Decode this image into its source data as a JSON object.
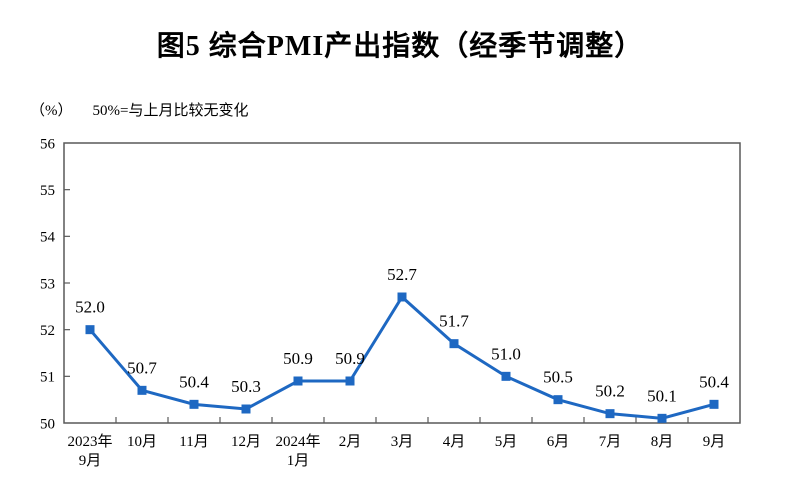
{
  "chart_data": {
    "type": "line",
    "title": "图5 综合PMI产出指数（经季节调整）",
    "unit_label": "（%）",
    "annotation": "50%=与上月比较无变化",
    "categories": [
      "2023年\n9月",
      "10月",
      "11月",
      "12月",
      "2024年\n1月",
      "2月",
      "3月",
      "4月",
      "5月",
      "6月",
      "7月",
      "8月",
      "9月"
    ],
    "series": [
      {
        "name": "综合PMI产出指数（经季节调整）",
        "values": [
          52.0,
          50.7,
          50.4,
          50.3,
          50.9,
          50.9,
          52.7,
          51.7,
          51.0,
          50.5,
          50.2,
          50.1,
          50.4
        ]
      }
    ],
    "data_labels": [
      "52.0",
      "50.7",
      "50.4",
      "50.3",
      "50.9",
      "50.9",
      "52.7",
      "51.7",
      "51.0",
      "50.5",
      "50.2",
      "50.1",
      "50.4"
    ],
    "ylim": [
      50,
      56
    ],
    "yticks": [
      50,
      51,
      52,
      53,
      54,
      55,
      56
    ],
    "xlabel": "",
    "ylabel": "",
    "grid": false,
    "legend_position": "none",
    "marker": "square",
    "colors": {
      "line": "#1e68c2",
      "marker": "#1e68c2",
      "axis": "#595959",
      "text": "#000000"
    }
  }
}
